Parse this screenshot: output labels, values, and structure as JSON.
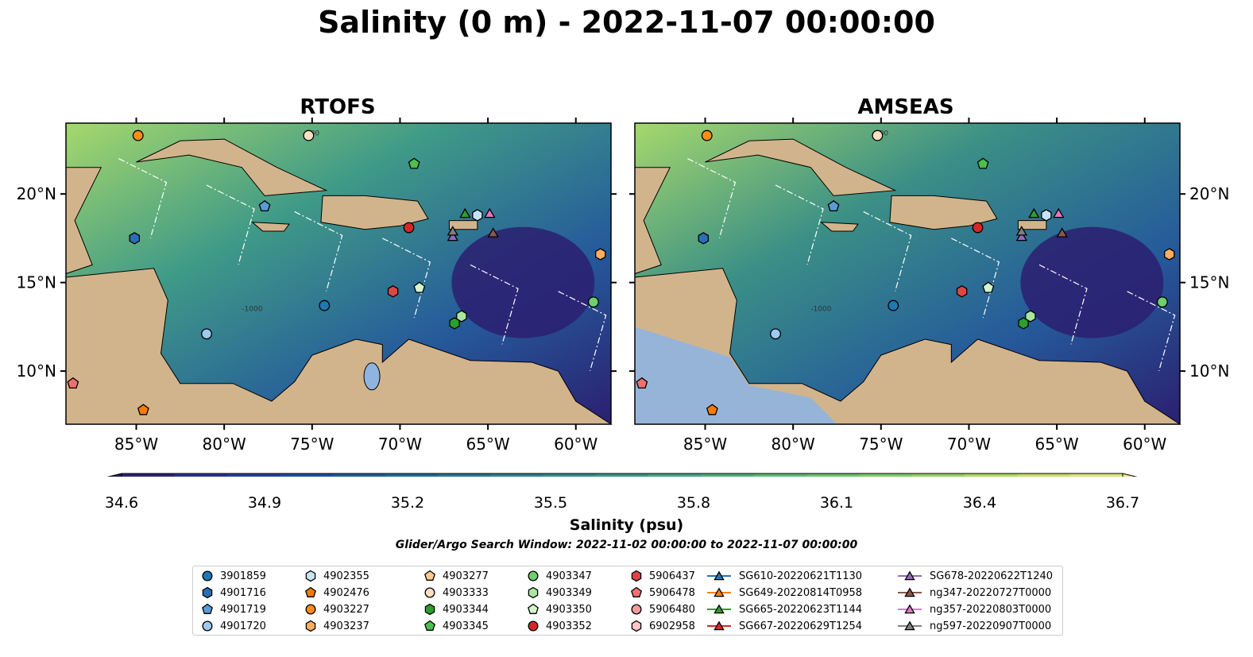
{
  "title": "Salinity (0 m) - 2022-11-07 00:00:00",
  "panels": [
    {
      "title": "RTOFS",
      "colors": {
        "ocean": "#3f9a87",
        "north": "#a6d86c",
        "south": "#2b1f70"
      }
    },
    {
      "title": "AMSEAS",
      "colors": {
        "ocean": "#3a8f86",
        "north": "#a6d86c",
        "south": "#2b1f70"
      }
    }
  ],
  "map": {
    "lon_range": [
      -89,
      -58
    ],
    "lat_range": [
      7,
      24
    ],
    "lon_ticks": [
      -85,
      -80,
      -75,
      -70,
      -65,
      -60
    ],
    "lon_tick_labels": [
      "85°W",
      "80°W",
      "75°W",
      "70°W",
      "65°W",
      "60°W"
    ],
    "lat_ticks": [
      10,
      15,
      20
    ],
    "lat_tick_labels": [
      "10°N",
      "15°N",
      "20°N"
    ],
    "land_color": "#d2b48c",
    "contour_labels": [
      "-100",
      "-1000"
    ]
  },
  "colorbar": {
    "min": 34.6,
    "max": 36.7,
    "ticks": [
      "34.6",
      "34.9",
      "35.2",
      "35.5",
      "35.8",
      "36.1",
      "36.4",
      "36.7"
    ],
    "colors": [
      "#26185f",
      "#2a2378",
      "#2a3193",
      "#243f9b",
      "#1e4e9c",
      "#1b5c99",
      "#1f6a96",
      "#247693",
      "#2a8290",
      "#318e8c",
      "#389987",
      "#41a482",
      "#4caf7c",
      "#5ab974",
      "#6ac26b",
      "#7dca62",
      "#93d15b",
      "#abd85f",
      "#c4dd69",
      "#dce37a",
      "#f0e68a"
    ],
    "label": "Salinity (psu)"
  },
  "search_window": "Glider/Argo Search Window: 2022-11-02 00:00:00 to 2022-11-07 00:00:00",
  "legend": {
    "columns": [
      [
        {
          "label": "3901859",
          "marker": "circle",
          "color": "#1f77b4"
        },
        {
          "label": "4901716",
          "marker": "hexagon",
          "color": "#2a6fb5"
        },
        {
          "label": "4901719",
          "marker": "pentagon",
          "color": "#5b9bd5"
        },
        {
          "label": "4901720",
          "marker": "circle",
          "color": "#9ec9f0"
        }
      ],
      [
        {
          "label": "4902355",
          "marker": "hexagon",
          "color": "#c7e3f7"
        },
        {
          "label": "4902476",
          "marker": "pentagon",
          "color": "#f57c00"
        },
        {
          "label": "4903227",
          "marker": "circle",
          "color": "#ff8c1a"
        },
        {
          "label": "4903237",
          "marker": "hexagon",
          "color": "#ffad60"
        }
      ],
      [
        {
          "label": "4903277",
          "marker": "pentagon",
          "color": "#ffc98f"
        },
        {
          "label": "4903333",
          "marker": "circle",
          "color": "#ffe0c2"
        },
        {
          "label": "4903344",
          "marker": "hexagon",
          "color": "#2ca02c"
        },
        {
          "label": "4903345",
          "marker": "pentagon",
          "color": "#4cbf4c"
        }
      ],
      [
        {
          "label": "4903347",
          "marker": "circle",
          "color": "#6fcf6f"
        },
        {
          "label": "4903349",
          "marker": "hexagon",
          "color": "#a8e6a0"
        },
        {
          "label": "4903350",
          "marker": "pentagon",
          "color": "#d4f5cc"
        },
        {
          "label": "4903352",
          "marker": "circle",
          "color": "#d62728"
        }
      ],
      [
        {
          "label": "5906437",
          "marker": "hexagon",
          "color": "#e04545"
        },
        {
          "label": "5906478",
          "marker": "pentagon",
          "color": "#f07070"
        },
        {
          "label": "5906480",
          "marker": "circle",
          "color": "#f59a9a"
        },
        {
          "label": "6902958",
          "marker": "hexagon",
          "color": "#fbc7c7"
        }
      ],
      [
        {
          "label": "SG610-20220621T1130",
          "marker": "triangle",
          "color": "#1f77b4"
        },
        {
          "label": "SG649-20220814T0958",
          "marker": "triangle",
          "color": "#ff7f0e"
        },
        {
          "label": "SG665-20220623T1144",
          "marker": "triangle",
          "color": "#2ca02c"
        },
        {
          "label": "SG667-20220629T1254",
          "marker": "triangle",
          "color": "#d62728"
        }
      ],
      [
        {
          "label": "SG678-20220622T1240",
          "marker": "triangle",
          "color": "#9467bd"
        },
        {
          "label": "ng347-20220727T0000",
          "marker": "triangle",
          "color": "#8c564b"
        },
        {
          "label": "ng357-20220803T0000",
          "marker": "triangle",
          "color": "#e377c2"
        },
        {
          "label": "ng597-20220907T0000",
          "marker": "triangle",
          "color": "#7f7f7f"
        }
      ]
    ]
  },
  "floats": [
    {
      "label": "3901859",
      "lon": -74.3,
      "lat": 13.7
    },
    {
      "label": "4901716",
      "lon": -85.1,
      "lat": 17.5
    },
    {
      "label": "4901719",
      "lon": -77.7,
      "lat": 19.3
    },
    {
      "label": "4901720",
      "lon": -81.0,
      "lat": 12.1
    },
    {
      "label": "4902355",
      "lon": -65.6,
      "lat": 18.8
    },
    {
      "label": "4902476",
      "lon": -84.6,
      "lat": 7.8
    },
    {
      "label": "4903227",
      "lon": -84.9,
      "lat": 23.3
    },
    {
      "label": "4903237",
      "lon": -58.6,
      "lat": 16.6
    },
    {
      "label": "4903333",
      "lon": -75.2,
      "lat": 23.3
    },
    {
      "label": "4903344",
      "lon": -66.9,
      "lat": 12.7
    },
    {
      "label": "4903345",
      "lon": -69.2,
      "lat": 21.7
    },
    {
      "label": "4903347",
      "lon": -59.0,
      "lat": 13.9
    },
    {
      "label": "4903349",
      "lon": -66.5,
      "lat": 13.1
    },
    {
      "label": "4903350",
      "lon": -68.9,
      "lat": 14.7
    },
    {
      "label": "4903352",
      "lon": -69.5,
      "lat": 18.1
    },
    {
      "label": "5906437",
      "lon": -70.4,
      "lat": 14.5
    },
    {
      "label": "5906478",
      "lon": -88.6,
      "lat": 9.3
    },
    {
      "label": "SG665-20220623T1144",
      "lon": -66.3,
      "lat": 18.9
    },
    {
      "label": "ng357-20220803T0000",
      "lon": -64.9,
      "lat": 18.9
    },
    {
      "label": "SG678-20220622T1240",
      "lon": -67.0,
      "lat": 17.6
    },
    {
      "label": "ng597-20220907T0000",
      "lon": -67.0,
      "lat": 17.9
    },
    {
      "label": "ng347-20220727T0000",
      "lon": -64.7,
      "lat": 17.8
    }
  ]
}
